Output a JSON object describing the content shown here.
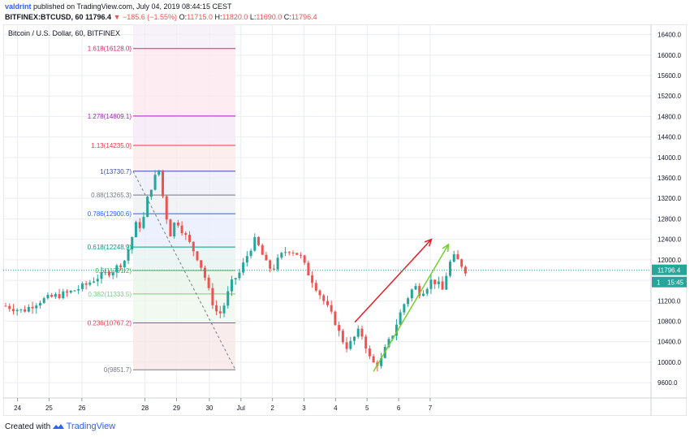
{
  "header": {
    "author": "valdrint",
    "published": "published on TradingView.com, July 04, 2019 08:44:15 CEST",
    "symbol": "BITFINEX:BTCUSD, 60",
    "price": "11796.4",
    "change": "▼ −185.6 (−1.55%)",
    "o_label": "O:",
    "o_value": "11715.0",
    "h_label": "H:",
    "h_value": "11820.0",
    "l_label": "L:",
    "l_value": "11690.0",
    "c_label": "C:",
    "c_value": "11796.4"
  },
  "footer": {
    "created_with": "Created with",
    "brand": "TradingView"
  },
  "colors": {
    "up": "#26a69a",
    "down": "#ef5350",
    "grid": "#ebedf0",
    "axis": "#9598a1",
    "red_line": "#e91c24",
    "green_line": "#6fd22e",
    "price_tag": "#26a69a"
  },
  "chart_data": {
    "type": "candlestick",
    "title": "Bitcoin / U.S. Dollar, 60, BITFINEX",
    "x_ticks": [
      "24",
      "25",
      "26",
      "28",
      "29",
      "30",
      "Jul",
      "2",
      "3",
      "4",
      "5",
      "6",
      "7"
    ],
    "y_ticks": [
      9600,
      10000,
      10400,
      10800,
      11200,
      11600,
      12000,
      12400,
      12800,
      13200,
      13600,
      14000,
      14400,
      14800,
      15200,
      15600,
      16000,
      16400
    ],
    "ylim": [
      9300,
      16600
    ],
    "last_price": "11796.4",
    "price_tag_value": "1",
    "countdown": "15:45",
    "fib_levels": [
      {
        "label": "0(9851.7)",
        "value": 9851.7,
        "color": "#787b86"
      },
      {
        "label": "0.236(10767.2)",
        "value": 10767.2,
        "color": "#f23645"
      },
      {
        "label": "0.382(11333.5)",
        "value": 11333.5,
        "color": "#81c784"
      },
      {
        "label": "0.5(11791.2)",
        "value": 11791.2,
        "color": "#4caf50"
      },
      {
        "label": "0.618(12248.9)",
        "value": 12248.9,
        "color": "#089981"
      },
      {
        "label": "0.786(12900.6)",
        "value": 12900.6,
        "color": "#2962ff"
      },
      {
        "label": "0.88(13265.3)",
        "value": 13265.3,
        "color": "#787b86"
      },
      {
        "label": "1(13730.7)",
        "value": 13730.7,
        "color": "#3d4d9e"
      },
      {
        "label": "1.13(14235.0)",
        "value": 14235.0,
        "color": "#f23645"
      },
      {
        "label": "1.278(14809.1)",
        "value": 14809.1,
        "color": "#9c27b0"
      },
      {
        "label": "1.618(16128.0)",
        "value": 16128.0,
        "color": "#e91e63"
      }
    ],
    "anchors": [
      [
        0,
        11100
      ],
      [
        3,
        11000
      ],
      [
        6,
        11200
      ],
      [
        9,
        11300
      ],
      [
        11,
        11350
      ],
      [
        14,
        11500
      ],
      [
        16,
        11650
      ],
      [
        19,
        11800
      ],
      [
        21,
        12000
      ],
      [
        22,
        12350
      ],
      [
        23,
        12700
      ],
      [
        24,
        12650
      ],
      [
        25,
        13200
      ],
      [
        26,
        13550
      ],
      [
        27,
        13750
      ],
      [
        28,
        13000
      ],
      [
        29,
        12500
      ],
      [
        30,
        12800
      ],
      [
        31,
        12600
      ],
      [
        32,
        12400
      ],
      [
        33,
        12200
      ],
      [
        34,
        12000
      ],
      [
        35,
        11700
      ],
      [
        36,
        11300
      ],
      [
        37,
        11000
      ],
      [
        38,
        10950
      ],
      [
        39,
        11300
      ],
      [
        40,
        11600
      ],
      [
        41,
        11700
      ],
      [
        42,
        11950
      ],
      [
        43,
        12200
      ],
      [
        44,
        12400
      ],
      [
        45,
        12150
      ],
      [
        46,
        11900
      ],
      [
        47,
        11800
      ],
      [
        48,
        12000
      ],
      [
        49,
        12150
      ],
      [
        50,
        12200
      ],
      [
        51,
        12150
      ],
      [
        52,
        12050
      ],
      [
        53,
        11800
      ],
      [
        54,
        11600
      ],
      [
        55,
        11400
      ],
      [
        56,
        11200
      ],
      [
        57,
        11000
      ],
      [
        58,
        10800
      ],
      [
        59,
        10500
      ],
      [
        60,
        10300
      ],
      [
        61,
        10400
      ],
      [
        62,
        10600
      ],
      [
        63,
        10500
      ],
      [
        64,
        10100
      ],
      [
        65,
        9950
      ],
      [
        66,
        10000
      ],
      [
        67,
        10300
      ],
      [
        68,
        10500
      ],
      [
        69,
        10800
      ],
      [
        70,
        11100
      ],
      [
        71,
        11300
      ],
      [
        72,
        11500
      ],
      [
        73,
        11350
      ],
      [
        74,
        11450
      ],
      [
        75,
        11600
      ],
      [
        76,
        11550
      ],
      [
        77,
        11400
      ],
      [
        78,
        11900
      ],
      [
        79,
        12050
      ],
      [
        80,
        11950
      ],
      [
        81,
        11796.4
      ]
    ],
    "trend_lines": [
      {
        "name": "",
        "color": "#e91c24",
        "points": [
          [
            61.5,
            10780
          ],
          [
            75,
            12400
          ]
        ]
      },
      {
        "name": "",
        "color": "#6fd22e",
        "points": [
          [
            64.8,
            9820
          ],
          [
            78,
            12300
          ]
        ]
      }
    ]
  }
}
